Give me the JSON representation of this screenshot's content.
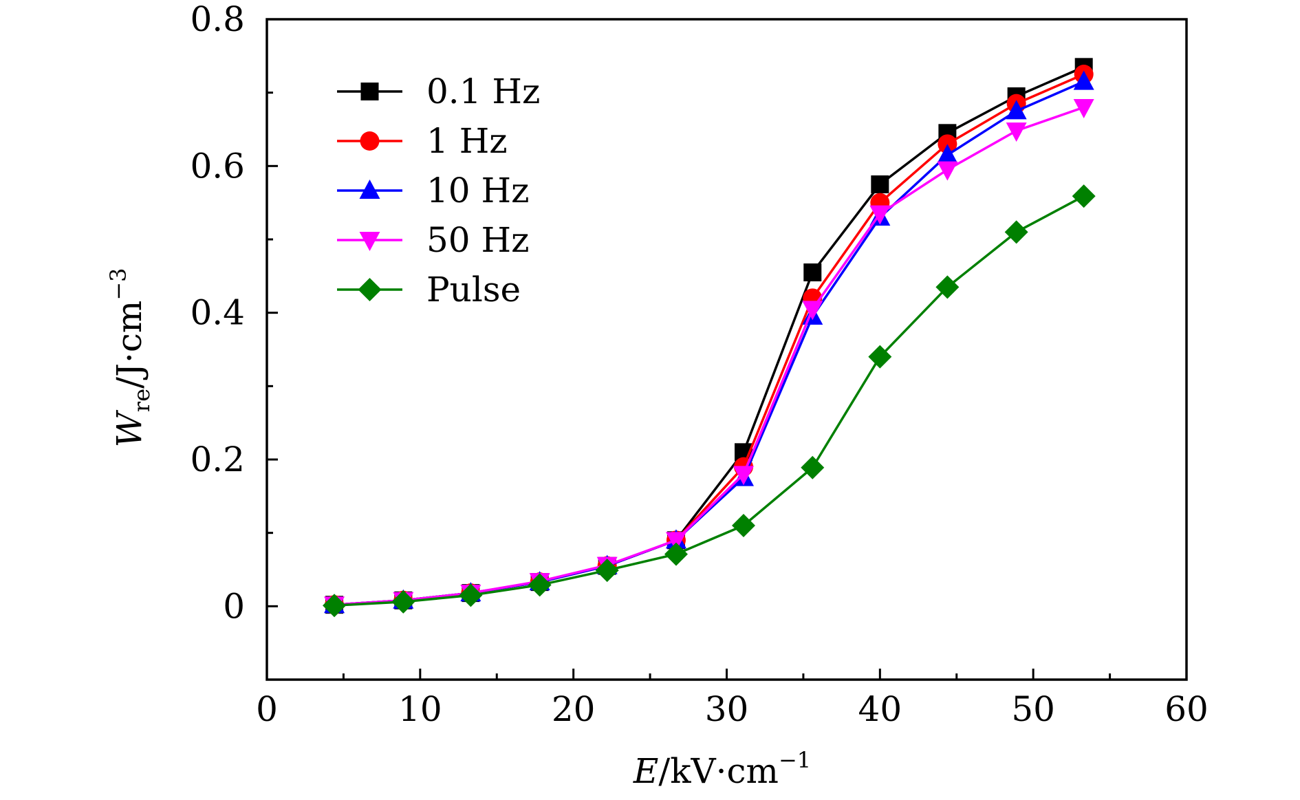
{
  "chart_data": {
    "type": "line",
    "xlabel": {
      "var": "E",
      "unit": "/kV·cm",
      "exp": "−1"
    },
    "ylabel": {
      "var": "W",
      "sub": "re",
      "unit": "/J·cm",
      "exp": "−3"
    },
    "xlim": [
      0,
      60
    ],
    "ylim": [
      -0.1,
      0.8
    ],
    "xticks": [
      0,
      10,
      20,
      30,
      40,
      50,
      60
    ],
    "xtick_labels": [
      "0",
      "10",
      "20",
      "30",
      "40",
      "50",
      "60"
    ],
    "yticks": [
      0,
      0.2,
      0.4,
      0.6,
      0.8
    ],
    "ytick_labels": [
      "0",
      "0.2",
      "0.4",
      "0.6",
      "0.8"
    ],
    "grid": false,
    "legend_position": "top-left",
    "x": [
      4.4,
      8.9,
      13.3,
      17.8,
      22.2,
      26.7,
      31.1,
      35.6,
      40.0,
      44.4,
      48.9,
      53.3
    ],
    "series": [
      {
        "name": "0.1 Hz",
        "color": "#000000",
        "marker": "square",
        "values": [
          0.002,
          0.008,
          0.018,
          0.033,
          0.055,
          0.09,
          0.21,
          0.455,
          0.575,
          0.645,
          0.695,
          0.735
        ]
      },
      {
        "name": "1 Hz",
        "color": "#ff0000",
        "marker": "circle",
        "values": [
          0.002,
          0.008,
          0.018,
          0.033,
          0.055,
          0.09,
          0.19,
          0.42,
          0.55,
          0.63,
          0.685,
          0.725
        ]
      },
      {
        "name": "10 Hz",
        "color": "#0000ff",
        "marker": "triangle-up",
        "values": [
          0.002,
          0.008,
          0.018,
          0.033,
          0.055,
          0.09,
          0.175,
          0.395,
          0.53,
          0.615,
          0.675,
          0.715
        ]
      },
      {
        "name": "50 Hz",
        "color": "#ff00ff",
        "marker": "triangle-down",
        "values": [
          0.002,
          0.008,
          0.018,
          0.034,
          0.056,
          0.09,
          0.18,
          0.405,
          0.535,
          0.595,
          0.648,
          0.68
        ]
      },
      {
        "name": "Pulse",
        "color": "#008000",
        "marker": "diamond",
        "values": [
          0.001,
          0.006,
          0.015,
          0.029,
          0.049,
          0.071,
          0.11,
          0.189,
          0.34,
          0.435,
          0.51,
          0.559
        ]
      }
    ]
  }
}
